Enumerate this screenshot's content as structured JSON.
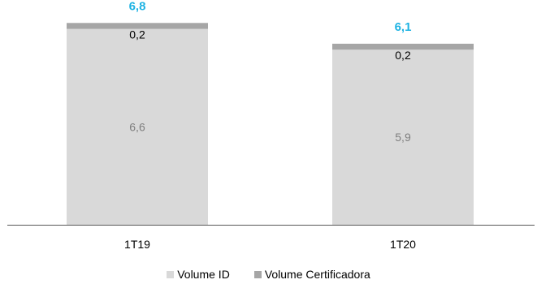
{
  "chart_data": {
    "type": "bar",
    "stacked": true,
    "categories": [
      "1T19",
      "1T20"
    ],
    "series": [
      {
        "name": "Volume ID",
        "values": [
          6.6,
          5.9
        ],
        "labels": [
          "6,6",
          "5,9"
        ],
        "color": "#d9d9d9",
        "label_color": "#7f7f7f"
      },
      {
        "name": "Volume Certificadora",
        "values": [
          0.2,
          0.2
        ],
        "labels": [
          "0,2",
          "0,2"
        ],
        "color": "#a6a6a6",
        "label_color": "#000000"
      }
    ],
    "totals": {
      "values": [
        6.8,
        6.1
      ],
      "labels": [
        "6,8",
        "6,1"
      ],
      "color": "#1fb3e3"
    },
    "ylim": [
      0,
      7.3
    ],
    "grid": false,
    "legend": "bottom-center",
    "axis_color": "#595959"
  }
}
